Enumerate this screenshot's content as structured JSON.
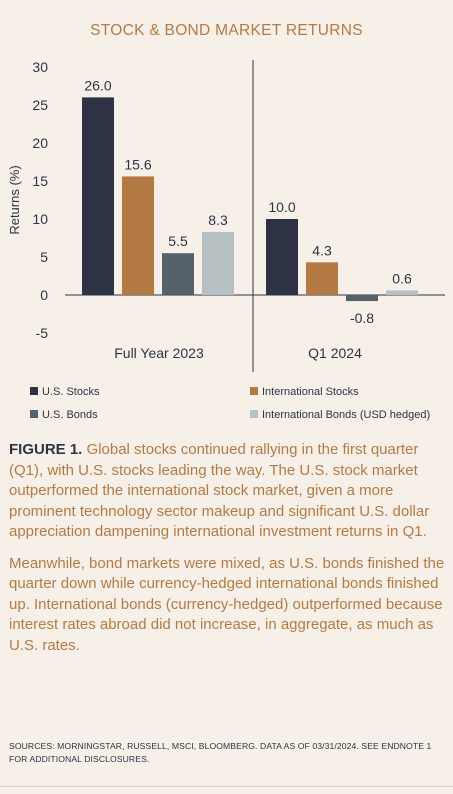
{
  "chart_data": {
    "type": "bar",
    "title": "STOCK & BOND MARKET RETURNS",
    "ylabel": "Returns (%)",
    "ylim": [
      -5,
      30
    ],
    "yticks": [
      30,
      25,
      20,
      15,
      10,
      5,
      0,
      -5
    ],
    "groups": [
      "Full Year 2023",
      "Q1 2024"
    ],
    "series": [
      {
        "name": "U.S. Stocks",
        "color": "#2d3345",
        "values": [
          26.0,
          10.0
        ],
        "labels": [
          "26.0",
          "10.0"
        ]
      },
      {
        "name": "International Stocks",
        "color": "#b47a44",
        "values": [
          15.6,
          4.3
        ],
        "labels": [
          "15.6",
          "4.3"
        ]
      },
      {
        "name": "U.S. Bonds",
        "color": "#56616a",
        "values": [
          5.5,
          -0.8
        ],
        "labels": [
          "5.5",
          "-0.8"
        ]
      },
      {
        "name": "International Bonds (USD hedged)",
        "color": "#b7c0c3",
        "values": [
          8.3,
          0.6
        ],
        "labels": [
          "8.3",
          "0.6"
        ]
      }
    ],
    "legend": "bottom",
    "grid": false
  },
  "caption": {
    "figure_label": "FIGURE 1.",
    "paragraph1": "Global stocks continued rallying in the first quarter (Q1), with U.S. stocks leading the way. The U.S. stock market outperformed the international stock market, given a more prominent technology sector makeup and significant U.S. dollar appreciation dampening international investment returns in Q1.",
    "paragraph2": "Meanwhile, bond markets were mixed, as U.S. bonds finished the quarter down while currency-hedged international bonds finished up. International bonds (currency-hedged) outperformed because interest rates abroad did not increase, in aggregate, as much as U.S. rates."
  },
  "sources": "SOURCES: MORNINGSTAR, RUSSELL, MSCI, BLOOMBERG. DATA AS OF 03/31/2024. SEE ENDNOTE 1 FOR ADDITIONAL DISCLOSURES."
}
